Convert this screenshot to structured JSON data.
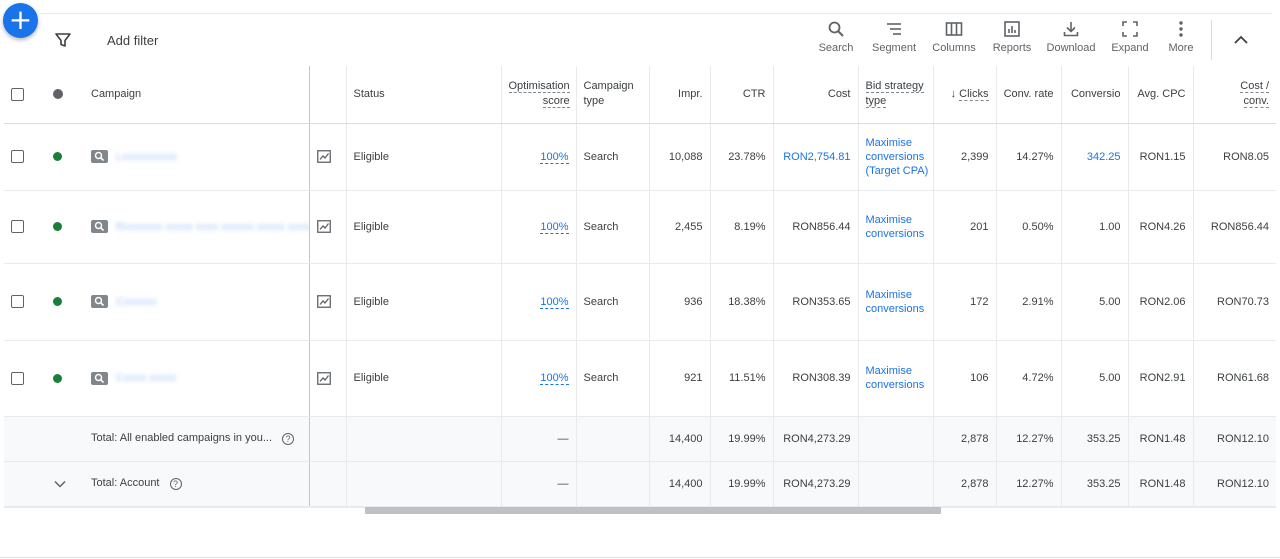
{
  "fab": {
    "label": "+"
  },
  "toolbar": {
    "add_filter": "Add filter",
    "tools": [
      {
        "label": "Search",
        "icon": "search-icon"
      },
      {
        "label": "Segment",
        "icon": "segment-icon"
      },
      {
        "label": "Columns",
        "icon": "columns-icon"
      },
      {
        "label": "Reports",
        "icon": "reports-icon"
      },
      {
        "label": "Download",
        "icon": "download-icon"
      },
      {
        "label": "Expand",
        "icon": "expand-icon"
      },
      {
        "label": "More",
        "icon": "more-icon"
      }
    ]
  },
  "columns": {
    "campaign": "Campaign",
    "status": "Status",
    "opt_score": "Optimisation score",
    "campaign_type": "Campaign type",
    "impr": "Impr.",
    "ctr": "CTR",
    "cost": "Cost",
    "bid_strategy": "Bid strategy type",
    "clicks": "Clicks",
    "clicks_sort": "↓",
    "conv_rate": "Conv. rate",
    "conversions": "Conversio",
    "avg_cpc": "Avg. CPC",
    "cost_conv": "Cost / conv."
  },
  "rows": [
    {
      "name": "Lxxxxxxxxxx",
      "status": "Eligible",
      "score": "100%",
      "type": "Search",
      "impr": "10,088",
      "ctr": "23.78%",
      "cost": "RON2,754.81",
      "bid": "Maximise conversions (Target CPA)",
      "clicks": "2,399",
      "conv_rate": "14.27%",
      "conversions": "342.25",
      "avg_cpc": "RON1.15",
      "cost_conv": "RON8.05"
    },
    {
      "name": "Rxxxxxxx xxxxx xxxx xxxxxx xxxxx xxxxxxx",
      "status": "Eligible",
      "score": "100%",
      "type": "Search",
      "impr": "2,455",
      "ctr": "8.19%",
      "cost": "RON856.44",
      "bid": "Maximise conversions",
      "clicks": "201",
      "conv_rate": "0.50%",
      "conversions": "1.00",
      "avg_cpc": "RON4.26",
      "cost_conv": "RON856.44"
    },
    {
      "name": "Cxxxxxx",
      "status": "Eligible",
      "score": "100%",
      "type": "Search",
      "impr": "936",
      "ctr": "18.38%",
      "cost": "RON353.65",
      "bid": "Maximise conversions",
      "clicks": "172",
      "conv_rate": "2.91%",
      "conversions": "5.00",
      "avg_cpc": "RON2.06",
      "cost_conv": "RON70.73"
    },
    {
      "name": "Cxxxx xxxxx",
      "status": "Eligible",
      "score": "100%",
      "type": "Search",
      "impr": "921",
      "ctr": "11.51%",
      "cost": "RON308.39",
      "bid": "Maximise conversions",
      "clicks": "106",
      "conv_rate": "4.72%",
      "conversions": "5.00",
      "avg_cpc": "RON2.91",
      "cost_conv": "RON61.68"
    }
  ],
  "totals": [
    {
      "label": "Total: All enabled campaigns in you...",
      "score": "—",
      "impr": "14,400",
      "ctr": "19.99%",
      "cost": "RON4,273.29",
      "clicks": "2,878",
      "conv_rate": "12.27%",
      "conversions": "353.25",
      "avg_cpc": "RON1.48",
      "cost_conv": "RON12.10"
    },
    {
      "label": "Total: Account",
      "score": "—",
      "impr": "14,400",
      "ctr": "19.99%",
      "cost": "RON4,273.29",
      "clicks": "2,878",
      "conv_rate": "12.27%",
      "conversions": "353.25",
      "avg_cpc": "RON1.48",
      "cost_conv": "RON12.10"
    }
  ],
  "colors": {
    "accent": "#1a73e8",
    "status_green": "#188038"
  }
}
